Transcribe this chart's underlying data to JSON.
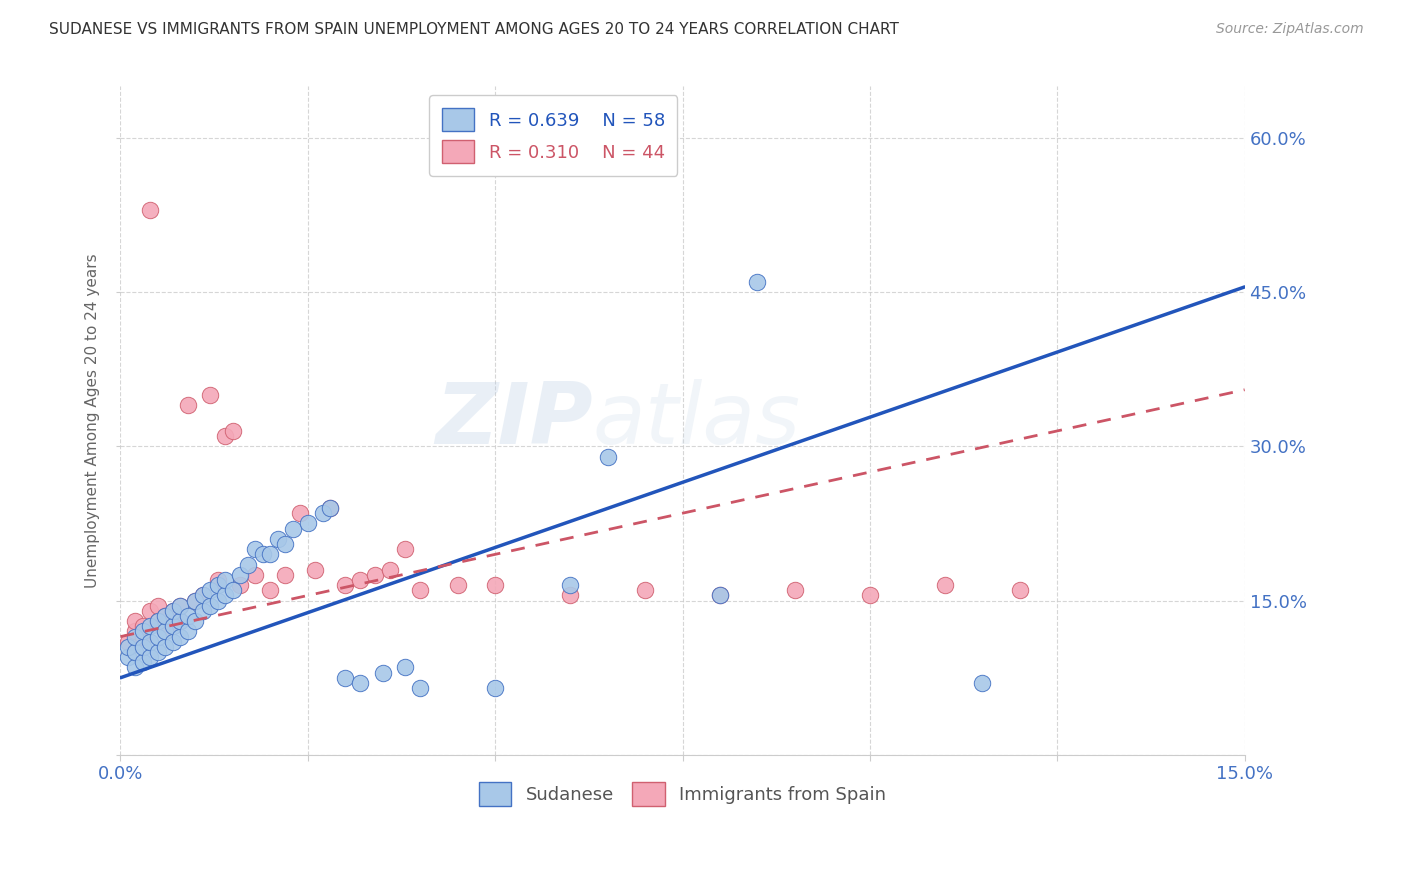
{
  "title": "SUDANESE VS IMMIGRANTS FROM SPAIN UNEMPLOYMENT AMONG AGES 20 TO 24 YEARS CORRELATION CHART",
  "source": "Source: ZipAtlas.com",
  "ylabel": "Unemployment Among Ages 20 to 24 years",
  "xlim": [
    0.0,
    0.15
  ],
  "ylim": [
    0.0,
    0.65
  ],
  "sudanese_color": "#a8c8e8",
  "sudanese_edge_color": "#4472c4",
  "spain_color": "#f4a8b8",
  "spain_edge_color": "#d06070",
  "sudanese_line_color": "#2255bb",
  "spain_line_color": "#cc5566",
  "legend_R_sudanese": "0.639",
  "legend_N_sudanese": "58",
  "legend_R_spain": "0.310",
  "legend_N_spain": "44",
  "blue_line_x0": 0.0,
  "blue_line_y0": 0.075,
  "blue_line_x1": 0.15,
  "blue_line_y1": 0.455,
  "pink_line_x0": 0.0,
  "pink_line_y0": 0.115,
  "pink_line_x1": 0.15,
  "pink_line_y1": 0.355,
  "background_color": "#ffffff",
  "sudanese_x": [
    0.001,
    0.001,
    0.002,
    0.002,
    0.002,
    0.003,
    0.003,
    0.003,
    0.004,
    0.004,
    0.004,
    0.005,
    0.005,
    0.005,
    0.006,
    0.006,
    0.006,
    0.007,
    0.007,
    0.007,
    0.008,
    0.008,
    0.008,
    0.009,
    0.009,
    0.01,
    0.01,
    0.011,
    0.011,
    0.012,
    0.012,
    0.013,
    0.013,
    0.014,
    0.014,
    0.015,
    0.016,
    0.017,
    0.018,
    0.019,
    0.02,
    0.021,
    0.022,
    0.023,
    0.025,
    0.027,
    0.028,
    0.03,
    0.032,
    0.035,
    0.038,
    0.04,
    0.05,
    0.06,
    0.065,
    0.08,
    0.085,
    0.115
  ],
  "sudanese_y": [
    0.095,
    0.105,
    0.085,
    0.1,
    0.115,
    0.09,
    0.105,
    0.12,
    0.095,
    0.11,
    0.125,
    0.1,
    0.115,
    0.13,
    0.105,
    0.12,
    0.135,
    0.11,
    0.125,
    0.14,
    0.115,
    0.13,
    0.145,
    0.12,
    0.135,
    0.13,
    0.15,
    0.14,
    0.155,
    0.145,
    0.16,
    0.15,
    0.165,
    0.155,
    0.17,
    0.16,
    0.175,
    0.185,
    0.2,
    0.195,
    0.195,
    0.21,
    0.205,
    0.22,
    0.225,
    0.235,
    0.24,
    0.075,
    0.07,
    0.08,
    0.085,
    0.065,
    0.065,
    0.165,
    0.29,
    0.155,
    0.46,
    0.07
  ],
  "spain_x": [
    0.001,
    0.002,
    0.002,
    0.003,
    0.003,
    0.004,
    0.004,
    0.005,
    0.005,
    0.006,
    0.006,
    0.007,
    0.007,
    0.008,
    0.008,
    0.009,
    0.01,
    0.011,
    0.012,
    0.013,
    0.014,
    0.015,
    0.016,
    0.018,
    0.02,
    0.022,
    0.024,
    0.026,
    0.028,
    0.03,
    0.032,
    0.034,
    0.036,
    0.038,
    0.04,
    0.045,
    0.05,
    0.06,
    0.07,
    0.08,
    0.09,
    0.1,
    0.11,
    0.12
  ],
  "spain_y": [
    0.11,
    0.12,
    0.13,
    0.115,
    0.125,
    0.14,
    0.53,
    0.13,
    0.145,
    0.12,
    0.135,
    0.125,
    0.14,
    0.13,
    0.145,
    0.34,
    0.15,
    0.155,
    0.35,
    0.17,
    0.31,
    0.315,
    0.165,
    0.175,
    0.16,
    0.175,
    0.235,
    0.18,
    0.24,
    0.165,
    0.17,
    0.175,
    0.18,
    0.2,
    0.16,
    0.165,
    0.165,
    0.155,
    0.16,
    0.155,
    0.16,
    0.155,
    0.165,
    0.16
  ]
}
